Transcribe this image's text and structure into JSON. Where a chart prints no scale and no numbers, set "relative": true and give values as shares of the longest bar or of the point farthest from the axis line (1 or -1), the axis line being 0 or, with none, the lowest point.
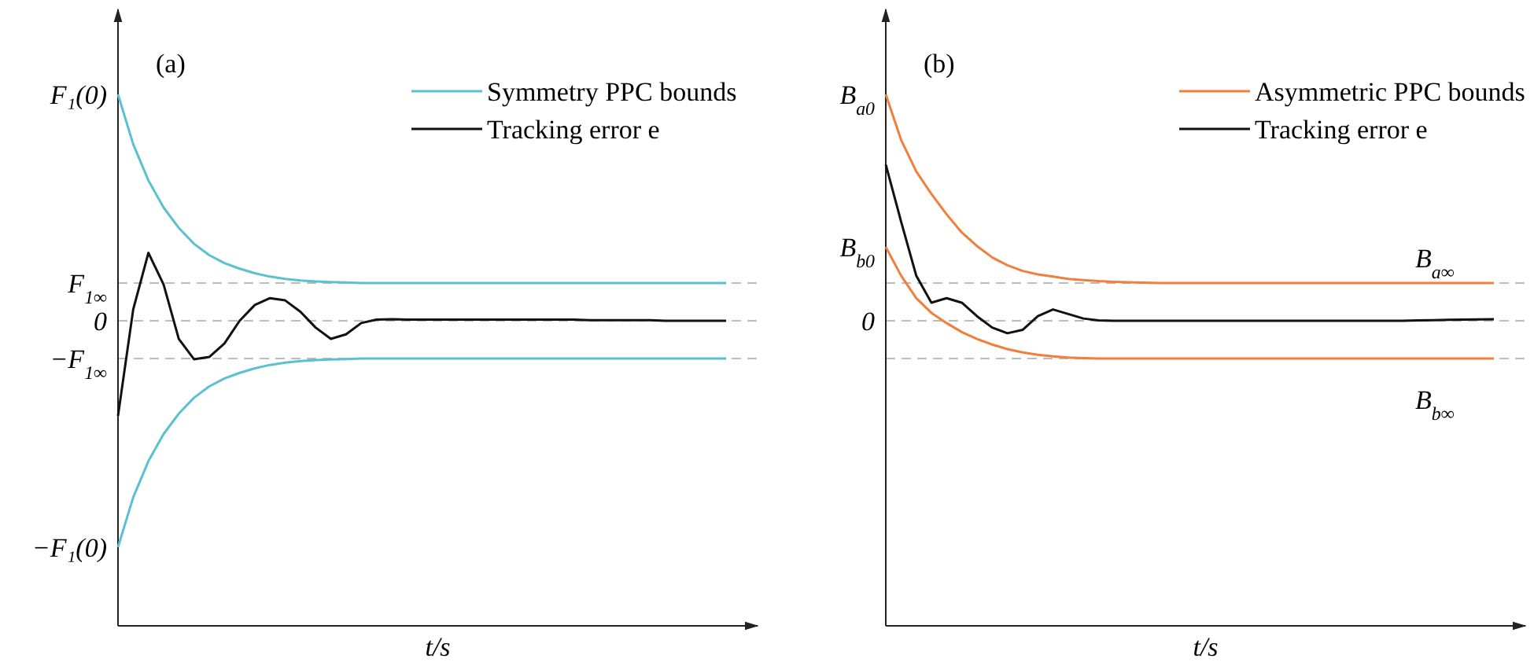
{
  "chart_data": [
    {
      "type": "line",
      "title": "(a)",
      "xlabel": "t/s",
      "relative": true,
      "legend": "top right",
      "marker": "none",
      "categories": [
        null,
        null,
        null,
        null,
        null,
        null,
        null,
        null,
        null,
        null,
        null,
        null,
        null,
        null,
        null,
        null,
        null,
        null,
        null,
        null,
        null,
        null,
        null,
        null,
        null,
        null,
        null,
        null,
        null,
        null,
        null,
        null,
        null,
        null,
        null,
        null,
        null,
        null,
        null,
        null,
        null
      ],
      "annotations": [
        "F₁(0)",
        "−F₁(0)"
      ],
      "ref_lines": [
        {
          "axis": "y",
          "value": 0.167,
          "color": "#bbbbbb",
          "line_style": "dashed",
          "label": "F$_{1∞}$"
        },
        {
          "axis": "y",
          "value": 0,
          "color": "#bbbbbb",
          "line_style": "dashed",
          "label": "0"
        },
        {
          "axis": "y",
          "value": -0.167,
          "color": "#bbbbbb",
          "line_style": "dashed",
          "label": "−F$_{1∞}$"
        }
      ],
      "series": [
        {
          "name": "Symmetry PPC bounds",
          "color": "#5bc0cf",
          "values": [
            1,
            0.78,
            0.62,
            0.5,
            0.41,
            0.34,
            0.29,
            0.255,
            0.23,
            0.21,
            0.195,
            0.185,
            0.178,
            0.174,
            0.171,
            0.169,
            0.167,
            0.167,
            0.167,
            0.167,
            0.167,
            0.167,
            0.167,
            0.167,
            0.167,
            0.167,
            0.167,
            0.167,
            0.167,
            0.167,
            0.167,
            0.167,
            0.167,
            0.167,
            0.167,
            0.167,
            0.167,
            0.167,
            0.167,
            0.167,
            0.167
          ]
        },
        {
          "color": "#5bc0cf",
          "values": [
            -1,
            -0.78,
            -0.62,
            -0.5,
            -0.41,
            -0.34,
            -0.29,
            -0.255,
            -0.23,
            -0.21,
            -0.195,
            -0.185,
            -0.178,
            -0.174,
            -0.171,
            -0.169,
            -0.167,
            -0.167,
            -0.167,
            -0.167,
            -0.167,
            -0.167,
            -0.167,
            -0.167,
            -0.167,
            -0.167,
            -0.167,
            -0.167,
            -0.167,
            -0.167,
            -0.167,
            -0.167,
            -0.167,
            -0.167,
            -0.167,
            -0.167,
            -0.167,
            -0.167,
            -0.167,
            -0.167,
            -0.167
          ]
        },
        {
          "name": "Tracking error e",
          "color": "#111111",
          "values": [
            -0.42,
            0.05,
            0.3,
            0.16,
            -0.08,
            -0.17,
            -0.16,
            -0.1,
            0,
            0.07,
            0.1,
            0.09,
            0.04,
            -0.03,
            -0.08,
            -0.06,
            -0.01,
            0.005,
            0.007,
            0.005,
            0.005,
            0.005,
            0.005,
            0.005,
            0.005,
            0.005,
            0.005,
            0.005,
            0.005,
            0.005,
            0.005,
            0.003,
            0.003,
            0.003,
            0.003,
            0.003,
            0,
            0,
            0,
            0,
            0
          ]
        }
      ]
    },
    {
      "type": "line",
      "title": "(b)",
      "xlabel": "t/s",
      "relative": true,
      "legend": "top right",
      "marker": "none",
      "categories": [
        null,
        null,
        null,
        null,
        null,
        null,
        null,
        null,
        null,
        null,
        null,
        null,
        null,
        null,
        null,
        null,
        null,
        null,
        null,
        null,
        null,
        null,
        null,
        null,
        null,
        null,
        null,
        null,
        null,
        null,
        null,
        null,
        null,
        null,
        null,
        null,
        null,
        null,
        null,
        null,
        null
      ],
      "annotations": [
        "B$_{a0}$",
        "B$_{b0}$",
        "B$_{a∞}$",
        "B$_{b∞}$"
      ],
      "ref_lines": [
        {
          "axis": "y",
          "value": 0.167,
          "color": "#bbbbbb",
          "line_style": "dashed"
        },
        {
          "axis": "y",
          "value": 0,
          "color": "#bbbbbb",
          "line_style": "dashed",
          "label": "0"
        },
        {
          "axis": "y",
          "value": -0.167,
          "color": "#bbbbbb",
          "line_style": "dashed"
        }
      ],
      "series": [
        {
          "name": "Asymmetric PPC bounds",
          "color": "#f07f3c",
          "values": [
            1,
            0.8,
            0.66,
            0.56,
            0.47,
            0.39,
            0.33,
            0.28,
            0.245,
            0.22,
            0.205,
            0.195,
            0.185,
            0.18,
            0.175,
            0.172,
            0.17,
            0.168,
            0.167,
            0.167,
            0.167,
            0.167,
            0.167,
            0.167,
            0.167,
            0.167,
            0.167,
            0.167,
            0.167,
            0.167,
            0.167,
            0.167,
            0.167,
            0.167,
            0.167,
            0.167,
            0.167,
            0.167,
            0.167,
            0.167,
            0.167
          ]
        },
        {
          "color": "#f07f3c",
          "values": [
            0.326,
            0.2,
            0.1,
            0.035,
            -0.01,
            -0.05,
            -0.08,
            -0.105,
            -0.125,
            -0.14,
            -0.15,
            -0.157,
            -0.162,
            -0.165,
            -0.167,
            -0.167,
            -0.167,
            -0.167,
            -0.167,
            -0.167,
            -0.167,
            -0.167,
            -0.167,
            -0.167,
            -0.167,
            -0.167,
            -0.167,
            -0.167,
            -0.167,
            -0.167,
            -0.167,
            -0.167,
            -0.167,
            -0.167,
            -0.167,
            -0.167,
            -0.167,
            -0.167,
            -0.167,
            -0.167,
            -0.167
          ]
        },
        {
          "name": "Tracking error e",
          "color": "#111111",
          "values": [
            0.69,
            0.44,
            0.2,
            0.08,
            0.1,
            0.08,
            0.02,
            -0.03,
            -0.055,
            -0.04,
            0.02,
            0.05,
            0.03,
            0.01,
            0.002,
            0,
            0,
            0,
            0,
            0,
            0,
            0,
            0,
            0,
            0,
            0,
            0,
            0,
            0,
            0,
            0,
            0,
            0,
            0,
            0,
            0.002,
            0.003,
            0.004,
            0.005,
            0.006,
            0.007
          ]
        }
      ]
    }
  ]
}
